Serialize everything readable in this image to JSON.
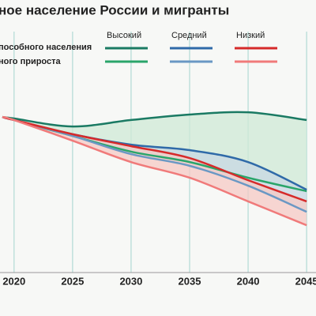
{
  "chart_data": {
    "type": "line",
    "title": "ное население России и мигранты",
    "legend_rows": [
      "пособного населения",
      "ного прироста"
    ],
    "x": [
      2019,
      2020,
      2025,
      2030,
      2035,
      2040,
      2045
    ],
    "xlim": [
      2018.8,
      2045.8
    ],
    "xticks": [
      2020,
      2025,
      2030,
      2035,
      2040,
      2045
    ],
    "ylim": [
      0,
      100
    ],
    "grid": true,
    "series": [
      {
        "name": "Высокий",
        "color": "#1a7a63",
        "light_color": "#2aa56a",
        "fill": "#cfe9d5",
        "values": [
          62.5,
          61.9,
          58.7,
          61.3,
          63.5,
          64.4,
          61.3
        ],
        "values_natural": [
          62.5,
          61.3,
          54.9,
          48.6,
          44.4,
          38.1,
          32.7
        ]
      },
      {
        "name": "Средний",
        "color": "#2f6aa8",
        "light_color": "#6a98c4",
        "fill": "#c7d7e3",
        "values": [
          62.5,
          61.3,
          55.6,
          51.4,
          49.2,
          44.4,
          33.3
        ],
        "values_natural": [
          62.5,
          61.3,
          54.9,
          47.6,
          42.9,
          34.9,
          24.4
        ]
      },
      {
        "name": "Низкий",
        "color": "#d62a2a",
        "light_color": "#f07a7a",
        "fill": "#f6c9c4",
        "values": [
          62.5,
          61.3,
          55.6,
          50.8,
          46.0,
          37.1,
          28.6
        ],
        "values_natural": [
          62.5,
          61.3,
          53.0,
          44.4,
          38.1,
          28.6,
          19.0
        ]
      }
    ]
  }
}
